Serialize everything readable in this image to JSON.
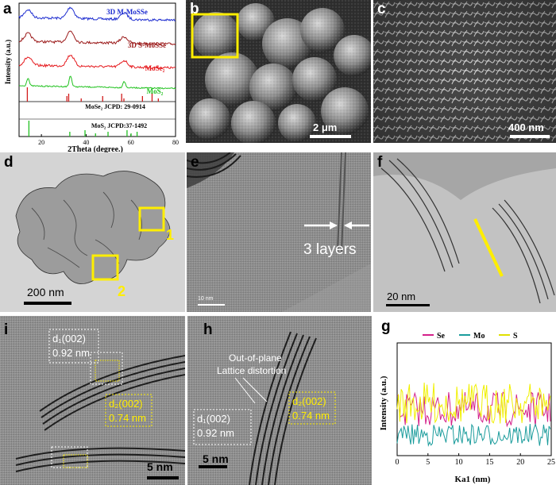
{
  "panel_labels": {
    "a": "a",
    "b": "b",
    "c": "c",
    "d": "d",
    "e": "e",
    "f": "f",
    "i": "i",
    "h": "h",
    "g": "g"
  },
  "chart_xrd": {
    "type": "line",
    "xlabel": "2Theta (degree.)",
    "ylabel": "Intensity (a.u.)",
    "xlim": [
      10,
      80
    ],
    "xticks": [
      "20",
      "40",
      "60",
      "80"
    ],
    "series": [
      {
        "name": "3D M-MoSSe",
        "color": "#1f2ed0"
      },
      {
        "name": "3D S-MoSSe",
        "color": "#9b1a1a"
      },
      {
        "name": "MoSe₂",
        "color": "#e5191d"
      },
      {
        "name": "MoS₂",
        "color": "#21c21f"
      }
    ],
    "references": [
      {
        "name": "MoSe₂ JCPD: 29-0914",
        "color": "#d11b1b",
        "peaks": [
          13.7,
          31.4,
          32.2,
          37.8,
          47.4,
          55.9,
          56.9,
          65.2,
          69.5,
          72.3
        ]
      },
      {
        "name": "MoS₂ JCPD:37-1492",
        "color": "#22c022",
        "peaks": [
          14.4,
          32.7,
          39.5,
          44.2,
          49.8,
          58.3,
          60.1,
          62.8
        ]
      }
    ]
  },
  "chart_line": {
    "type": "line",
    "xlabel": "Ka1 (nm)",
    "ylabel": "Intensity (a.u.)",
    "xlim": [
      0,
      25
    ],
    "xticks": [
      "0",
      "5",
      "10",
      "15",
      "20",
      "25"
    ],
    "series": [
      {
        "name": "Se",
        "color": "#d4208a"
      },
      {
        "name": "Mo",
        "color": "#1b9c9c"
      },
      {
        "name": "S",
        "color": "#f0f000"
      }
    ]
  },
  "scale_bars": {
    "b": "2 μm",
    "c": "400 nm",
    "d": "200  nm",
    "e": "10 nm",
    "f": "20  nm",
    "i": "5 nm",
    "h": "5 nm"
  },
  "annotations": {
    "e_layers": "3 layers",
    "d_region1": "1",
    "d_region2": "2",
    "i_d1_label": "d₁(002)",
    "i_d1_value": "0.92 nm",
    "i_d2_label": "d₂(002)",
    "i_d2_value": "0.74 nm",
    "h_distortion_line1": "Out-of-plane",
    "h_distortion_line2": "Lattice distortion",
    "h_d1_label": "d₁(002)",
    "h_d1_value": "0.92 nm",
    "h_d2_label": "d₂(002)",
    "h_d2_value": "0.74 nm"
  },
  "colors": {
    "yellow_marker": "#ffee00",
    "chart_axis": "#000000"
  }
}
